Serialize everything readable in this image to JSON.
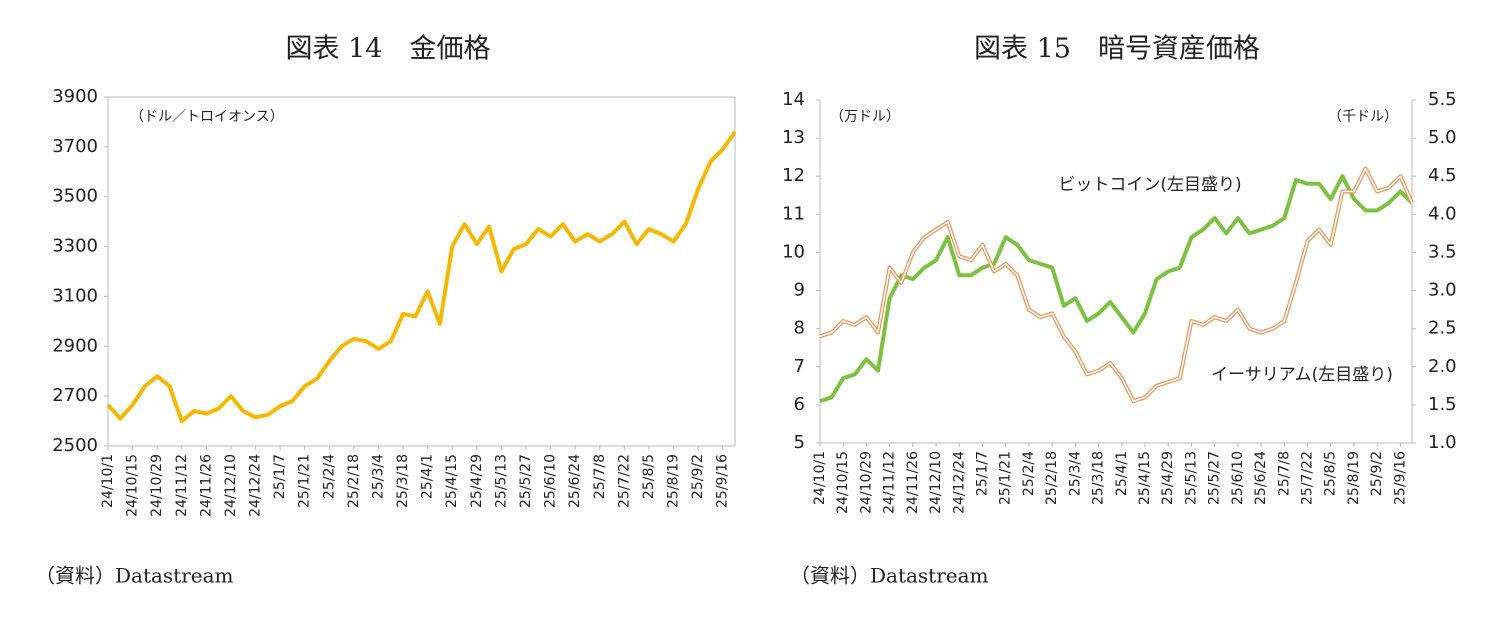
{
  "chart_data": [
    {
      "type": "line",
      "title": "図表 14　金価格",
      "y_axis_label": "（ドル／トロイオンス）",
      "source": "（資料）Datastream",
      "categories": [
        "24/10/1",
        null,
        "24/10/15",
        null,
        "24/10/29",
        null,
        "24/11/12",
        null,
        "24/11/26",
        null,
        "24/12/10",
        null,
        "24/12/24",
        null,
        "25/1/7",
        null,
        "25/1/21",
        null,
        "25/2/4",
        null,
        "25/2/18",
        null,
        "25/3/4",
        null,
        "25/3/18",
        null,
        "25/4/1",
        null,
        "25/4/15",
        null,
        "25/4/29",
        null,
        "25/5/13",
        null,
        "25/5/27",
        null,
        "25/6/10",
        null,
        "25/6/24",
        null,
        "25/7/8",
        null,
        "25/7/22",
        null,
        "25/8/5",
        null,
        "25/8/19",
        null,
        "25/9/2",
        null,
        "25/9/16",
        null
      ],
      "series": [
        {
          "name": "金価格",
          "color": "#f5b800",
          "values": [
            2665,
            2610,
            2665,
            2740,
            2780,
            2740,
            2600,
            2640,
            2630,
            2650,
            2700,
            2640,
            2615,
            2625,
            2660,
            2680,
            2740,
            2770,
            2840,
            2900,
            2930,
            2920,
            2890,
            2920,
            3030,
            3020,
            3120,
            2990,
            3300,
            3390,
            3310,
            3380,
            3200,
            3290,
            3310,
            3370,
            3340,
            3390,
            3320,
            3350,
            3320,
            3350,
            3400,
            3310,
            3370,
            3350,
            3320,
            3390,
            3530,
            3640,
            3690,
            3760
          ]
        }
      ],
      "ylim": [
        2500,
        3900
      ],
      "yticks": [
        2500,
        2700,
        2900,
        3100,
        3300,
        3500,
        3700,
        3900
      ],
      "legend": false
    },
    {
      "type": "line",
      "title": "図表 15　暗号資産価格",
      "y_axis_label": "（万ドル）",
      "y2_axis_label": "（千ドル）",
      "source": "（資料）Datastream",
      "categories": [
        "24/10/1",
        null,
        "24/10/15",
        null,
        "24/10/29",
        null,
        "24/11/12",
        null,
        "24/11/26",
        null,
        "24/12/10",
        null,
        "24/12/24",
        null,
        "25/1/7",
        null,
        "25/1/21",
        null,
        "25/2/4",
        null,
        "25/2/18",
        null,
        "25/3/4",
        null,
        "25/3/18",
        null,
        "25/4/1",
        null,
        "25/4/15",
        null,
        "25/4/29",
        null,
        "25/5/13",
        null,
        "25/5/27",
        null,
        "25/6/10",
        null,
        "25/6/24",
        null,
        "25/7/8",
        null,
        "25/7/22",
        null,
        "25/8/5",
        null,
        "25/8/19",
        null,
        "25/9/2",
        null,
        "25/9/16",
        null
      ],
      "series": [
        {
          "name": "ビットコイン(左目盛り)",
          "color": "#7cc142",
          "values": [
            6.1,
            6.2,
            6.7,
            6.8,
            7.2,
            6.9,
            8.8,
            9.4,
            9.3,
            9.6,
            9.8,
            10.4,
            9.4,
            9.4,
            9.6,
            9.7,
            10.4,
            10.2,
            9.8,
            9.7,
            9.6,
            8.6,
            8.8,
            8.2,
            8.4,
            8.7,
            8.3,
            7.9,
            8.4,
            9.3,
            9.5,
            9.6,
            10.4,
            10.6,
            10.9,
            10.5,
            10.9,
            10.5,
            10.6,
            10.7,
            10.9,
            11.9,
            11.8,
            11.8,
            11.4,
            12.0,
            11.4,
            11.1,
            11.1,
            11.3,
            11.6,
            11.3
          ]
        },
        {
          "name": "イーサリアム(左目盛り)",
          "color": "#e8955a",
          "axis": "y2",
          "values": [
            2.4,
            2.45,
            2.6,
            2.55,
            2.65,
            2.45,
            3.3,
            3.1,
            3.5,
            3.7,
            3.8,
            3.9,
            3.45,
            3.4,
            3.6,
            3.25,
            3.35,
            3.2,
            2.75,
            2.65,
            2.7,
            2.4,
            2.2,
            1.9,
            1.95,
            2.05,
            1.85,
            1.55,
            1.6,
            1.75,
            1.8,
            1.85,
            2.6,
            2.55,
            2.65,
            2.6,
            2.75,
            2.5,
            2.45,
            2.5,
            2.6,
            3.1,
            3.65,
            3.8,
            3.6,
            4.3,
            4.3,
            4.6,
            4.3,
            4.35,
            4.5,
            4.15
          ]
        }
      ],
      "ylim": [
        5,
        14
      ],
      "yticks": [
        5,
        6,
        7,
        8,
        9,
        10,
        11,
        12,
        13,
        14
      ],
      "y2lim": [
        1,
        5.5
      ],
      "y2ticks": [
        {
          "value": 1,
          "label": "1.0"
        },
        1.5,
        {
          "value": 2,
          "label": "2.0"
        },
        2.5,
        {
          "value": 3,
          "label": "3.0"
        },
        3.5,
        {
          "value": 4,
          "label": "4.0"
        },
        4.5,
        {
          "value": 5,
          "label": "5.0"
        },
        5.5
      ],
      "legend": true
    }
  ]
}
